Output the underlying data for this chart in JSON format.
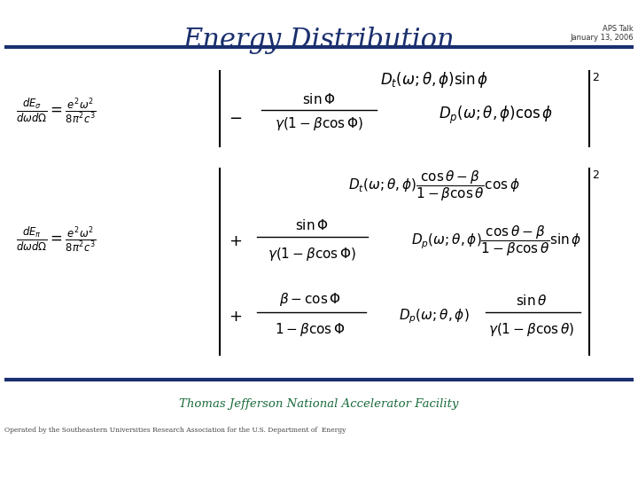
{
  "title": "Energy Distribution",
  "subtitle_right": "APS Talk\nJanuary 13, 2006",
  "bg_color": "#ffffff",
  "title_color": "#1a2f6e",
  "hline_color": "#1a2f6e",
  "footer_text": "Thomas Jefferson National Accelerator Facility",
  "footer_sub": "Operated by the Southeastern Universities Research Association for the U.S. Department of  Energy",
  "footer_color": "#1a6b3c",
  "eq1_lhs": "$\\frac{dE_{\\sigma}}{d\\omega d\\Omega} = \\frac{e^2\\omega^2}{8\\pi^2 c^3}$",
  "eq1_top": "$D_t(\\omega;\\theta,\\phi)\\sin\\phi$",
  "eq1_minus": "$-$",
  "eq1_frac_num": "$\\sin\\Phi$",
  "eq1_frac_den": "$\\gamma(1-\\beta\\cos\\Phi)$",
  "eq1_dp": "$D_p(\\omega;\\theta,\\phi)\\cos\\phi$",
  "eq2_lhs": "$\\frac{dE_{\\pi}}{d\\omega d\\Omega} = \\frac{e^2\\omega^2}{8\\pi^2 c^3}$",
  "eq2_r1": "$D_t(\\omega;\\theta,\\phi)\\dfrac{\\cos\\theta-\\beta}{1-\\beta\\cos\\theta}\\cos\\phi$",
  "eq2_plus1": "$+$",
  "eq2_r2_frac_num": "$\\sin\\Phi$",
  "eq2_r2_frac_den": "$\\gamma(1-\\beta\\cos\\Phi)$",
  "eq2_r2_dp": "$D_p(\\omega;\\theta,\\phi)\\dfrac{\\cos\\theta-\\beta}{1-\\beta\\cos\\theta}\\sin\\phi$",
  "eq2_plus2": "$+$",
  "eq2_r3_frac_num": "$\\beta-\\cos\\Phi$",
  "eq2_r3_frac_den": "$1-\\beta\\cos\\Phi$",
  "eq2_r3_dp": "$D_p(\\omega;\\theta,\\phi)$",
  "eq2_r3_sinth_num": "$\\sin\\theta$",
  "eq2_r3_sinth_den": "$\\gamma(1-\\beta\\cos\\theta)$",
  "superscript2": "$2$"
}
